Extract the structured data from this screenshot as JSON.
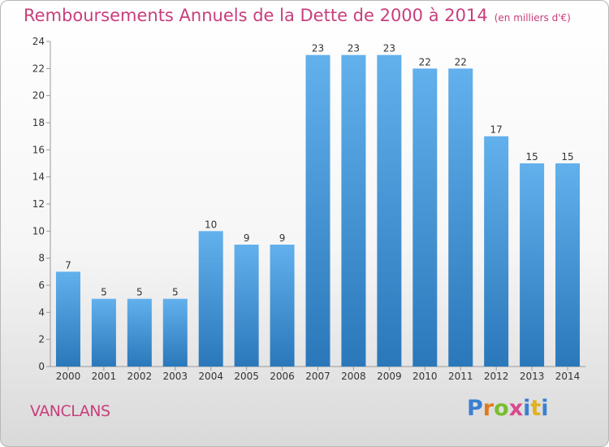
{
  "chart_data": {
    "type": "bar",
    "title": "Remboursements Annuels de la Dette de 2000 à 2014",
    "subtitle": "(en milliers d'€)",
    "categories": [
      "2000",
      "2001",
      "2002",
      "2003",
      "2004",
      "2005",
      "2006",
      "2007",
      "2008",
      "2009",
      "2010",
      "2011",
      "2012",
      "2013",
      "2014"
    ],
    "values": [
      7,
      5,
      5,
      5,
      10,
      9,
      9,
      23,
      23,
      23,
      22,
      22,
      17,
      15,
      15
    ],
    "xlabel": "",
    "ylabel": "",
    "ylim": [
      0,
      24
    ],
    "yticks": [
      0,
      2,
      4,
      6,
      8,
      10,
      12,
      14,
      16,
      18,
      20,
      22,
      24
    ],
    "grid": false,
    "data_labels": true
  },
  "footer": {
    "commune": "VANCLANS",
    "brand": "Proxiti"
  },
  "colors": {
    "title": "#c83e7c",
    "bar_light": "#62b0ec",
    "bar_dark": "#2a78ba",
    "logo": [
      "#3b7fd0",
      "#e07a1f",
      "#7abd2e",
      "#d94a8c",
      "#3b7fd0",
      "#e0b21f",
      "#3b7fd0"
    ]
  }
}
